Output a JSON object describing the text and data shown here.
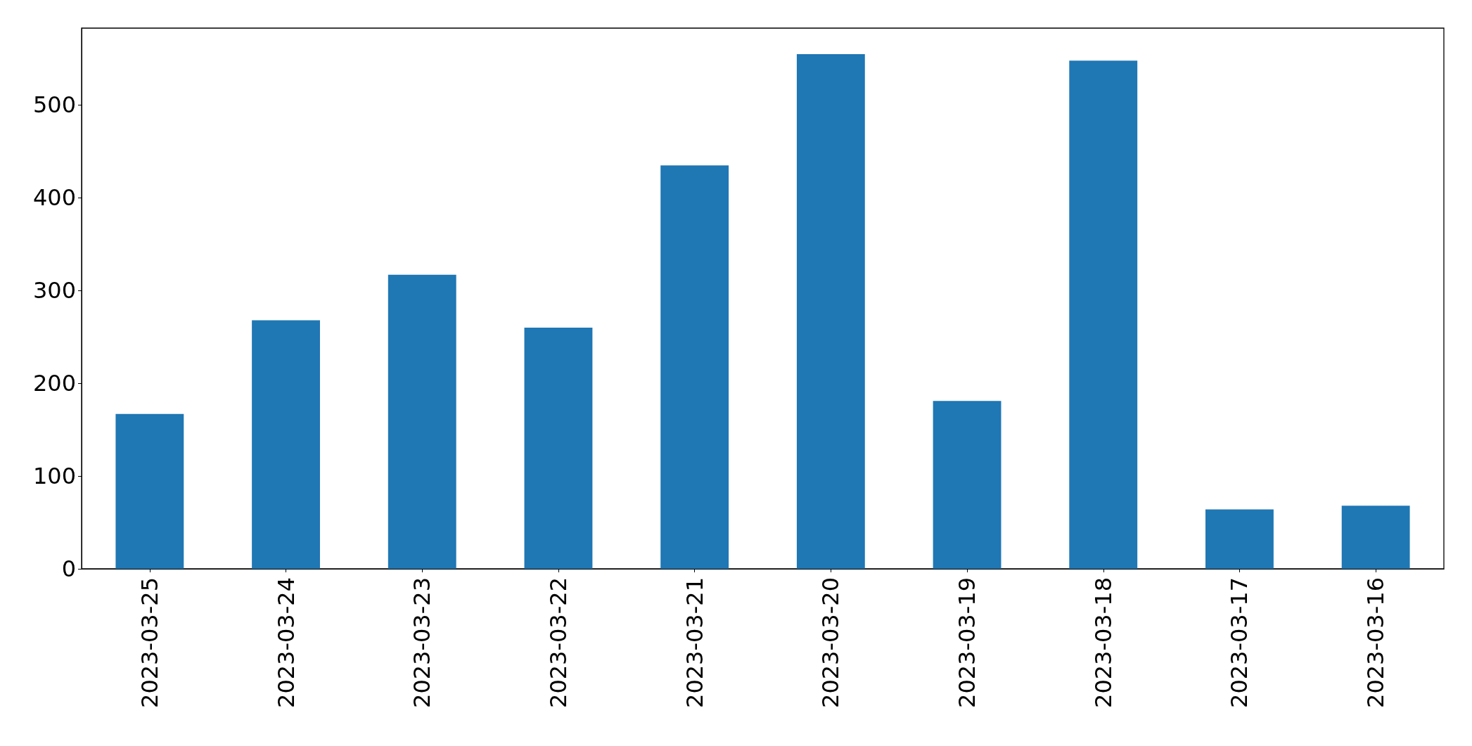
{
  "chart_data": {
    "type": "bar",
    "categories": [
      "2023-03-25",
      "2023-03-24",
      "2023-03-23",
      "2023-03-22",
      "2023-03-21",
      "2023-03-20",
      "2023-03-19",
      "2023-03-18",
      "2023-03-17",
      "2023-03-16"
    ],
    "values": [
      167,
      268,
      317,
      260,
      435,
      555,
      181,
      548,
      64,
      68
    ],
    "color": "#1f77b4",
    "ylim": [
      0,
      583
    ],
    "yticks": [
      0,
      100,
      200,
      300,
      400,
      500
    ],
    "grid": false
  }
}
